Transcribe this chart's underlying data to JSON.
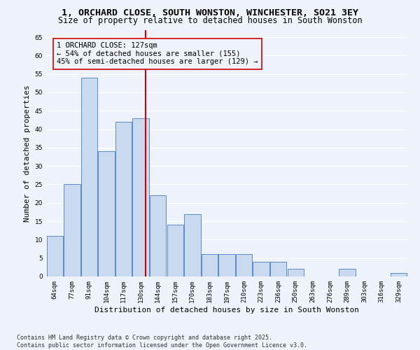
{
  "title_line1": "1, ORCHARD CLOSE, SOUTH WONSTON, WINCHESTER, SO21 3EY",
  "title_line2": "Size of property relative to detached houses in South Wonston",
  "xlabel": "Distribution of detached houses by size in South Wonston",
  "ylabel": "Number of detached properties",
  "categories": [
    "64sqm",
    "77sqm",
    "91sqm",
    "104sqm",
    "117sqm",
    "130sqm",
    "144sqm",
    "157sqm",
    "170sqm",
    "183sqm",
    "197sqm",
    "210sqm",
    "223sqm",
    "236sqm",
    "250sqm",
    "263sqm",
    "276sqm",
    "289sqm",
    "303sqm",
    "316sqm",
    "329sqm"
  ],
  "values": [
    11,
    25,
    54,
    34,
    42,
    43,
    22,
    14,
    17,
    6,
    6,
    6,
    4,
    4,
    2,
    0,
    0,
    2,
    0,
    0,
    1
  ],
  "bar_color": "#c9d9f0",
  "bar_edge_color": "#5a8ac6",
  "vline_color": "#cc0000",
  "annotation_text": "1 ORCHARD CLOSE: 127sqm\n← 54% of detached houses are smaller (155)\n45% of semi-detached houses are larger (129) →",
  "ylim": [
    0,
    67
  ],
  "yticks": [
    0,
    5,
    10,
    15,
    20,
    25,
    30,
    35,
    40,
    45,
    50,
    55,
    60,
    65
  ],
  "background_color": "#eef2fa",
  "grid_color": "#ffffff",
  "footer_line1": "Contains HM Land Registry data © Crown copyright and database right 2025.",
  "footer_line2": "Contains public sector information licensed under the Open Government Licence v3.0.",
  "title_fontsize": 9.5,
  "subtitle_fontsize": 8.5,
  "axis_label_fontsize": 8,
  "tick_fontsize": 6.5,
  "annotation_fontsize": 7.5,
  "footer_fontsize": 6
}
